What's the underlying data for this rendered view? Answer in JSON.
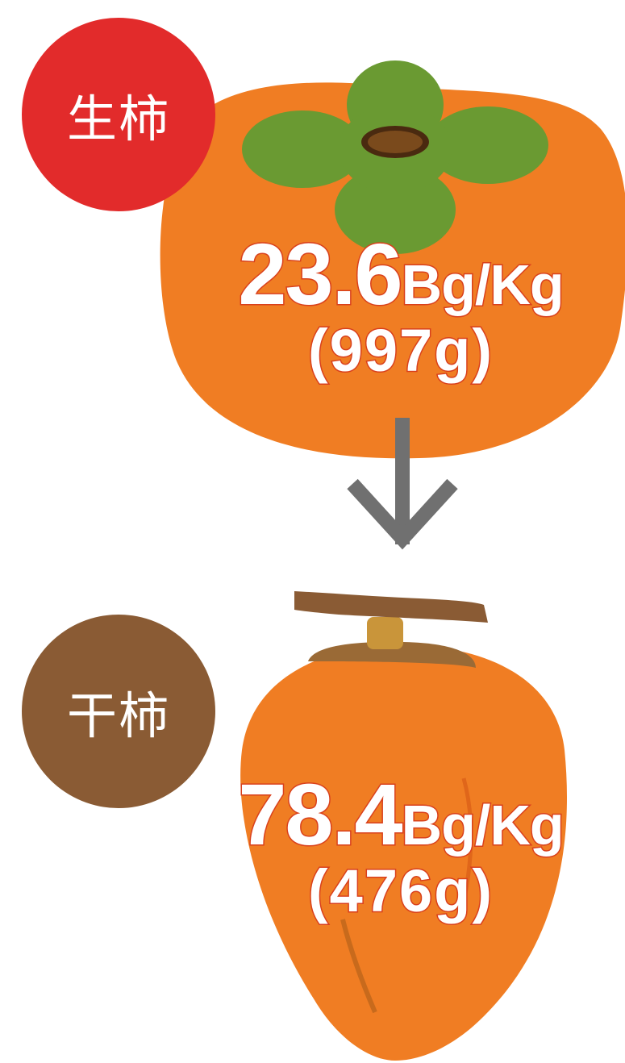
{
  "fresh": {
    "label": "生柿",
    "value": "23.6",
    "unit": "Bg/Kg",
    "weight": "(997g)",
    "badge_color": "#e22b2b"
  },
  "dried": {
    "label": "干柿",
    "value": "78.4",
    "unit": "Bg/Kg",
    "weight": "(476g)",
    "badge_color": "#8a5b34"
  },
  "icons": {
    "fresh_fruit": "fresh-persimmon-icon",
    "dried_fruit": "dried-persimmon-icon",
    "arrow": "down-arrow-icon"
  },
  "colors": {
    "persimmon": "#f07d23",
    "calyx": "#6a9a32",
    "arrow": "#707070",
    "stem": "#8a5b34"
  }
}
